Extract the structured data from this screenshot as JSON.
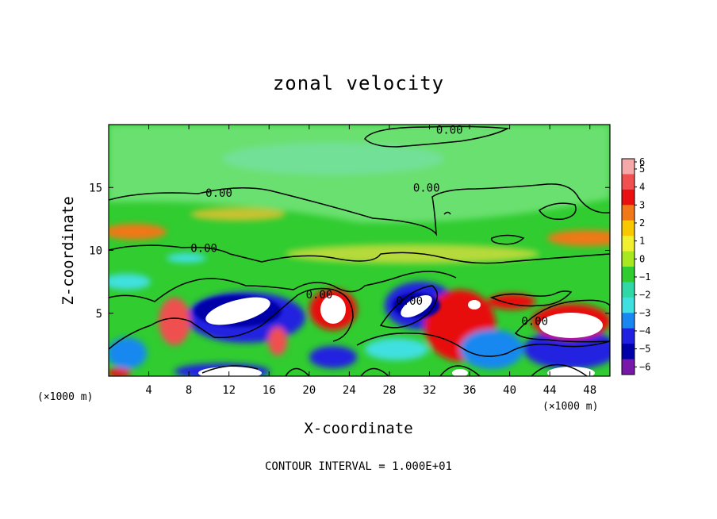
{
  "chart_data": {
    "type": "heatmap",
    "title": "zonal velocity",
    "xlabel": "X-coordinate",
    "ylabel": "Z-coordinate",
    "x_unit": "(×1000 m)",
    "y_unit": "(×1000 m)",
    "xlim": [
      0,
      50
    ],
    "ylim": [
      0,
      20
    ],
    "x_ticks": [
      "4",
      "8",
      "12",
      "16",
      "20",
      "24",
      "28",
      "32",
      "36",
      "40",
      "44",
      "48"
    ],
    "y_ticks": [
      "5",
      "10",
      "15"
    ],
    "colorbar": {
      "range": [
        -6,
        6
      ],
      "ticks": [
        "6",
        "5",
        "4",
        "3",
        "2",
        "1",
        "0",
        "−1",
        "−2",
        "−3",
        "−4",
        "−5",
        "−6"
      ],
      "colors": [
        "#f4a8a8",
        "#f05050",
        "#e81010",
        "#f07818",
        "#f8c800",
        "#f0f030",
        "#a8e820",
        "#30cc30",
        "#30d8a8",
        "#40e0e0",
        "#1888f0",
        "#2020e0",
        "#0000a8",
        "#7818a8"
      ]
    },
    "contour_labels": [
      {
        "text": "0.00",
        "x": 11,
        "z": 14.4
      },
      {
        "text": "0.00",
        "x": 31.7,
        "z": 14.8
      },
      {
        "text": "0.00",
        "x": 34,
        "z": 19.4
      },
      {
        "text": "0.00",
        "x": 9.5,
        "z": 10
      },
      {
        "text": "0.00",
        "x": 21,
        "z": 6.3
      },
      {
        "text": "0.00",
        "x": 30,
        "z": 5.8
      },
      {
        "text": "0.00",
        "x": 42.5,
        "z": 4.2
      }
    ],
    "footer": "CONTOUR INTERVAL = 1.000E+01"
  }
}
